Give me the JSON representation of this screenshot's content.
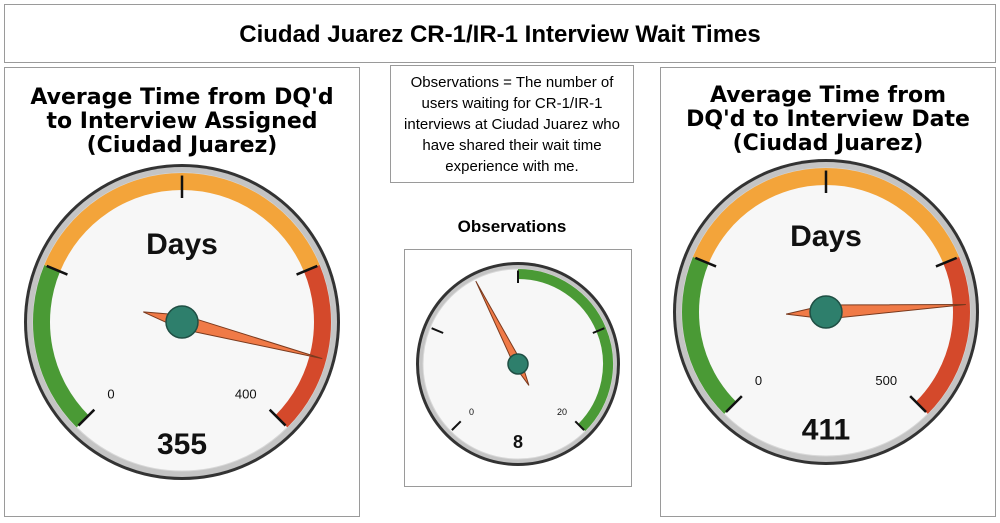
{
  "header": {
    "title": "Ciudad Juarez CR-1/IR-1 Interview Wait Times"
  },
  "note": {
    "text": "Observations = The number of users waiting for CR-1/IR-1 interviews at Ciudad Juarez who have shared their wait time experience with me."
  },
  "colors": {
    "green": "#4a9a35",
    "orange": "#f3a43a",
    "red": "#d4492b",
    "needle": "#f07a47",
    "hub": "#2e7f6c",
    "face": "#f7f7f7",
    "rim": "#c4c4c4"
  },
  "chart_data": [
    {
      "type": "gauge",
      "title": "Average Time from DQ'd to Interview Assigned (Ciudad Juarez)",
      "title_lines": [
        "Average Time from DQ'd",
        "to Interview Assigned",
        "(Ciudad Juarez)"
      ],
      "label": "Days",
      "value": 355,
      "display_value": "355",
      "min": 0,
      "max": 400,
      "min_label": "0",
      "max_label": "400",
      "bands": [
        {
          "from": 0,
          "to": 100,
          "color": "green"
        },
        {
          "from": 100,
          "to": 300,
          "color": "orange"
        },
        {
          "from": 300,
          "to": 400,
          "color": "red"
        }
      ],
      "major_ticks": 5
    },
    {
      "type": "gauge",
      "title": "Observations",
      "label": "",
      "value": 8,
      "display_value": "8",
      "min": 0,
      "max": 20,
      "min_label": "0",
      "max_label": "20",
      "bands": [
        {
          "from": 10,
          "to": 20,
          "color": "green"
        }
      ],
      "major_ticks": 5
    },
    {
      "type": "gauge",
      "title": "Average Time from DQ'd to Interview Date (Ciudad Juarez)",
      "title_lines": [
        "Average Time from",
        "DQ'd to Interview Date",
        "(Ciudad Juarez)"
      ],
      "label": "Days",
      "value": 411,
      "display_value": "411",
      "min": 0,
      "max": 500,
      "min_label": "0",
      "max_label": "500",
      "bands": [
        {
          "from": 0,
          "to": 125,
          "color": "green"
        },
        {
          "from": 125,
          "to": 375,
          "color": "orange"
        },
        {
          "from": 375,
          "to": 500,
          "color": "red"
        }
      ],
      "major_ticks": 5
    }
  ]
}
